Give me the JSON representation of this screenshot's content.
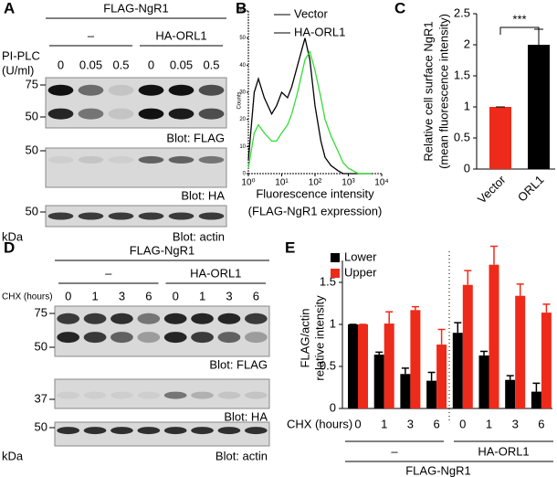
{
  "blots": [
    {
      "panel": "A",
      "construct": "FLAG-NgR1",
      "groups": [
        "–",
        "HA-ORL1"
      ],
      "treatment": "PI-PLC",
      "treatment_unit": "(U/ml)",
      "lanes": [
        "0",
        "0.05",
        "0.5",
        "0",
        "0.05",
        "0.5"
      ],
      "panels": [
        {
          "label": "Blot: FLAG",
          "markers": [
            75,
            50
          ]
        },
        {
          "label": "Blot: HA",
          "markers": [
            50
          ]
        },
        {
          "label": "Blot: actin",
          "markers": [
            50
          ]
        }
      ],
      "unit": "kDa"
    },
    {
      "panel": "D",
      "construct": "FLAG-NgR1",
      "groups": [
        "–",
        "HA-ORL1"
      ],
      "treatment": "CHX (hours)",
      "lanes": [
        "0",
        "1",
        "3",
        "6",
        "0",
        "1",
        "3",
        "6"
      ],
      "panels": [
        {
          "label": "Blot: FLAG",
          "markers": [
            75,
            50
          ]
        },
        {
          "label": "Blot: HA",
          "markers": [
            37
          ]
        },
        {
          "label": "Blot: actin",
          "markers": [
            50
          ]
        }
      ],
      "unit": "kDa"
    }
  ],
  "chart_data": [
    {
      "type": "line",
      "panel": "B",
      "x_label": [
        "Fluorescence intensity",
        "(FLAG-NgR1 expression)"
      ],
      "y_label": "Counts",
      "log_x": true,
      "xlim": [
        1,
        10000
      ],
      "xticks": [
        {
          "value": 1,
          "label": "10⁰"
        },
        {
          "value": 10,
          "label": "10¹"
        },
        {
          "value": 100,
          "label": "10²"
        },
        {
          "value": 1000,
          "label": "10³"
        },
        {
          "value": 10000,
          "label": "10⁴"
        }
      ],
      "ylim": [
        0,
        60
      ],
      "yticks": [
        0,
        10,
        20,
        30,
        40,
        50,
        60
      ],
      "x": [
        1,
        1.5,
        2,
        3,
        5,
        7,
        10,
        15,
        20,
        30,
        50,
        70,
        100,
        150,
        200,
        300,
        500,
        700,
        1000,
        2000,
        5000
      ],
      "series": [
        {
          "name": "Vector",
          "color": "#000000",
          "values": [
            5,
            30,
            35,
            28,
            22,
            25,
            30,
            28,
            32,
            40,
            50,
            42,
            25,
            12,
            6,
            3,
            1,
            0,
            0,
            0,
            0
          ]
        },
        {
          "name": "HA-ORL1",
          "color": "#33dd33",
          "values": [
            2,
            15,
            18,
            15,
            12,
            12,
            15,
            18,
            22,
            30,
            42,
            45,
            38,
            28,
            20,
            14,
            8,
            4,
            2,
            0,
            0
          ]
        }
      ]
    },
    {
      "type": "bar",
      "panel": "C",
      "y_label": [
        "Relative cell surface NgR1",
        "(mean fluorescence intensity)"
      ],
      "categories": [
        "Vector",
        "ORL1"
      ],
      "values": [
        1,
        2.0
      ],
      "errors": [
        0,
        0.25
      ],
      "colors": [
        "#ee2a1a",
        "#000000"
      ],
      "ylim": [
        0,
        2.5
      ],
      "yticks": [
        0,
        0.5,
        1,
        1.5,
        2,
        2.5
      ],
      "annotation": "***"
    },
    {
      "type": "grouped_bar",
      "panel": "E",
      "y_label": [
        "FLAG/actin",
        "relative intensity"
      ],
      "x_label": "CHX (hours)",
      "categories": [
        "0",
        "1",
        "3",
        "6",
        "0",
        "1",
        "3",
        "6"
      ],
      "groups": [
        "–",
        "HA-ORL1"
      ],
      "construct": "FLAG-NgR1",
      "ylim": [
        0,
        2
      ],
      "yticks": [
        0,
        0.5,
        1,
        1.5
      ],
      "series": [
        {
          "name": "Lower",
          "color": "#000000",
          "values": [
            1,
            0.64,
            0.41,
            0.33,
            0.9,
            0.63,
            0.34,
            0.2
          ],
          "errors": [
            0,
            0.03,
            0.07,
            0.1,
            0.12,
            0.05,
            0.05,
            0.1
          ]
        },
        {
          "name": "Upper",
          "color": "#ee2a1a",
          "values": [
            1,
            1.01,
            1.17,
            0.76,
            1.47,
            1.71,
            1.34,
            1.14
          ],
          "errors": [
            0,
            0.14,
            0.04,
            0.18,
            0.17,
            0.22,
            0.14,
            0.1
          ]
        }
      ]
    }
  ]
}
